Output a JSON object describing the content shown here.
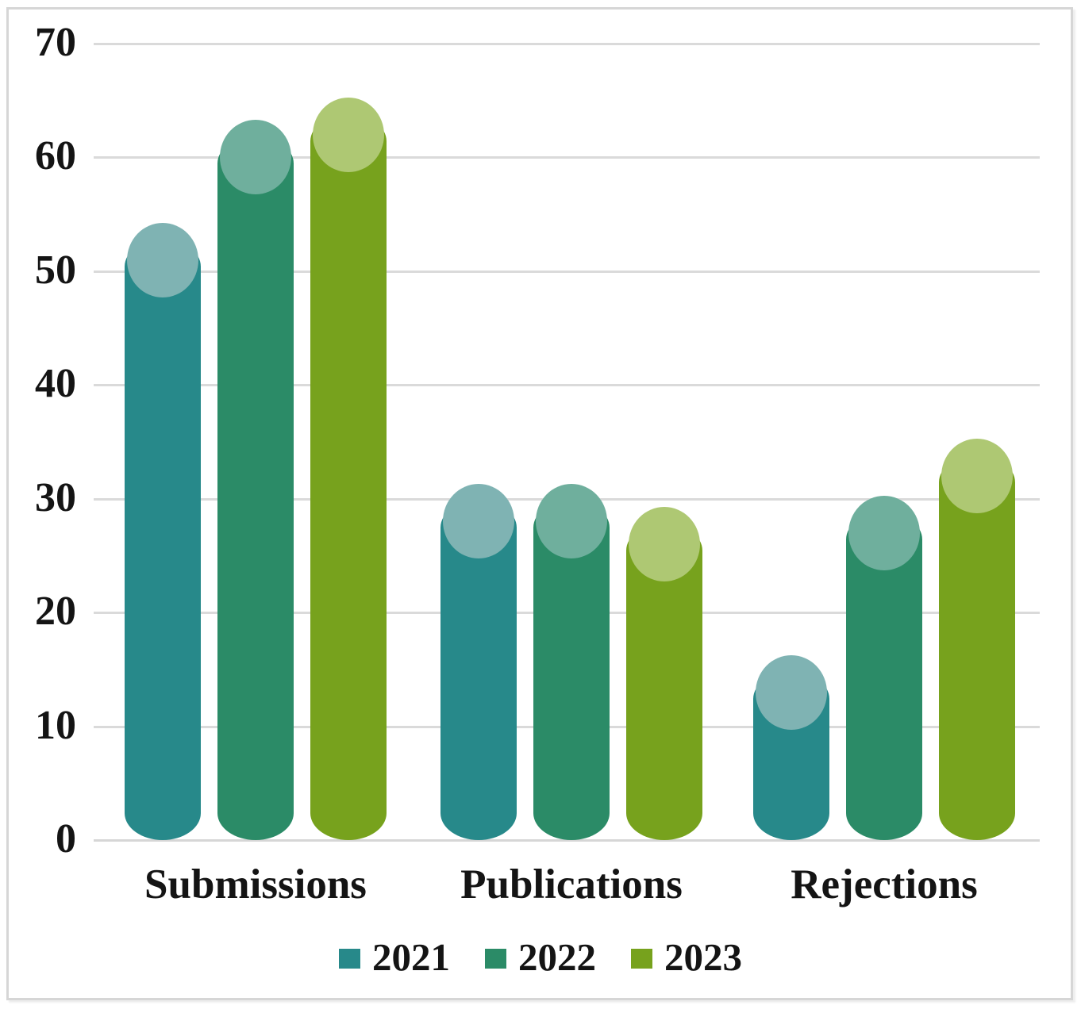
{
  "chart_data": {
    "type": "bar",
    "subtype": "3d-cylinder-columns",
    "title": "",
    "xlabel": "",
    "ylabel": "",
    "categories": [
      "Submissions",
      "Publications",
      "Rejections"
    ],
    "series": [
      {
        "name": "2021",
        "color": "#27898A",
        "cap_color": "#7FB3B3",
        "values": [
          51,
          28,
          13
        ]
      },
      {
        "name": "2022",
        "color": "#2B8B67",
        "cap_color": "#6FAF9D",
        "values": [
          60,
          28,
          27
        ]
      },
      {
        "name": "2023",
        "color": "#77A21D",
        "cap_color": "#AEC873",
        "values": [
          62,
          26,
          32
        ]
      }
    ],
    "ylim": [
      0,
      70
    ],
    "ytick_step": 10,
    "yticks": [
      "0",
      "10",
      "20",
      "30",
      "40",
      "50",
      "60",
      "70"
    ],
    "grid": true,
    "gridline_color": "#dadada",
    "axis_line_color": "#d6d6d6",
    "legend_position": "bottom",
    "legend_labels": [
      "2021",
      "2022",
      "2023"
    ],
    "background_color": "#ffffff",
    "frame_border_color": "#d6d6d6",
    "text_color": "#141414"
  }
}
